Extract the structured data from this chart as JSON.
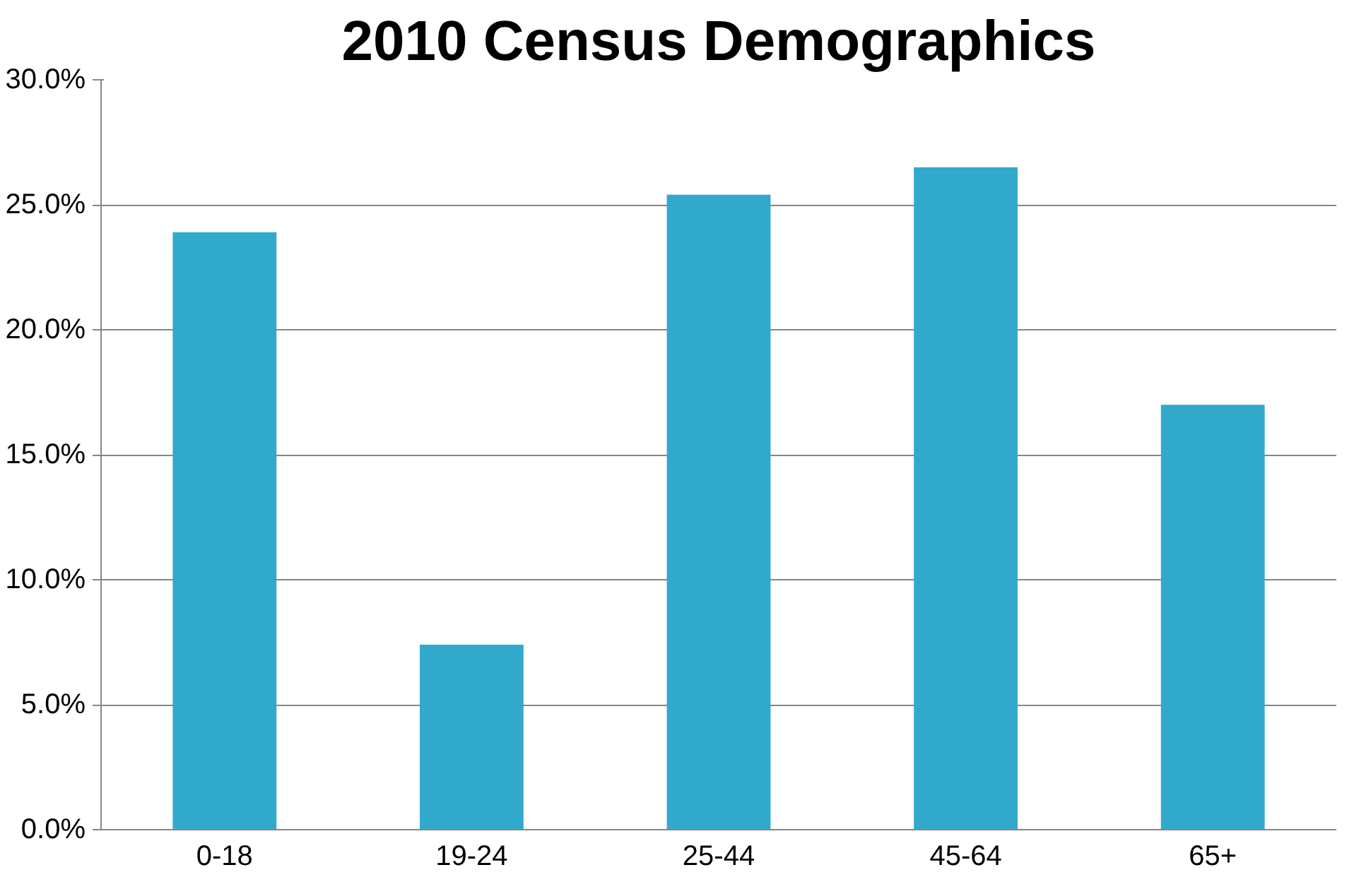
{
  "chart_data": {
    "type": "bar",
    "title": "2010 Census Demographics",
    "categories": [
      "0-18",
      "19-24",
      "25-44",
      "45-64",
      "65+"
    ],
    "values": [
      23.9,
      7.4,
      25.4,
      26.5,
      17.0
    ],
    "color": "#31a9cc",
    "ylim": [
      0,
      30
    ],
    "yticks": [
      {
        "value": 0,
        "label": "0.0%"
      },
      {
        "value": 5,
        "label": "5.0%"
      },
      {
        "value": 10,
        "label": "10.0%"
      },
      {
        "value": 15,
        "label": "15.0%"
      },
      {
        "value": 20,
        "label": "20.0%"
      },
      {
        "value": 25,
        "label": "25.0%"
      },
      {
        "value": 30,
        "label": "30.0%"
      }
    ],
    "grid": "y"
  }
}
